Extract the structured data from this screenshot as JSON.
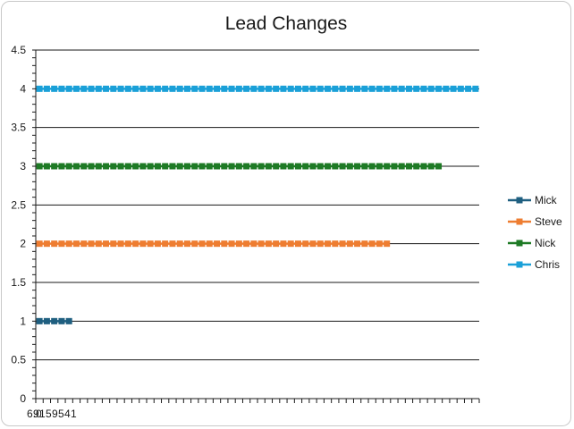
{
  "chart_data": {
    "type": "line",
    "title": "Lead Changes",
    "xlabel": "",
    "ylabel": "",
    "ylim": [
      0,
      4.5
    ],
    "y_ticks": [
      "0",
      "0.5",
      "1",
      "1.5",
      "2",
      "2.5",
      "3",
      "3.5",
      "4",
      "4.5"
    ],
    "x_tick_labels_overlapping": [
      "6.0",
      "9",
      "1",
      "5",
      "9",
      "5",
      "4",
      "1"
    ],
    "x_point_count": 60,
    "grid": true,
    "legend_position": "right",
    "series": [
      {
        "name": "Mick",
        "color": "#1f5f80",
        "y": 1,
        "points": 5
      },
      {
        "name": "Steve",
        "color": "#ee7d31",
        "y": 2,
        "points": 48
      },
      {
        "name": "Nick",
        "color": "#1e7a25",
        "y": 3,
        "points": 55
      },
      {
        "name": "Chris",
        "color": "#1aa0d8",
        "y": 4,
        "points": 60
      }
    ]
  }
}
